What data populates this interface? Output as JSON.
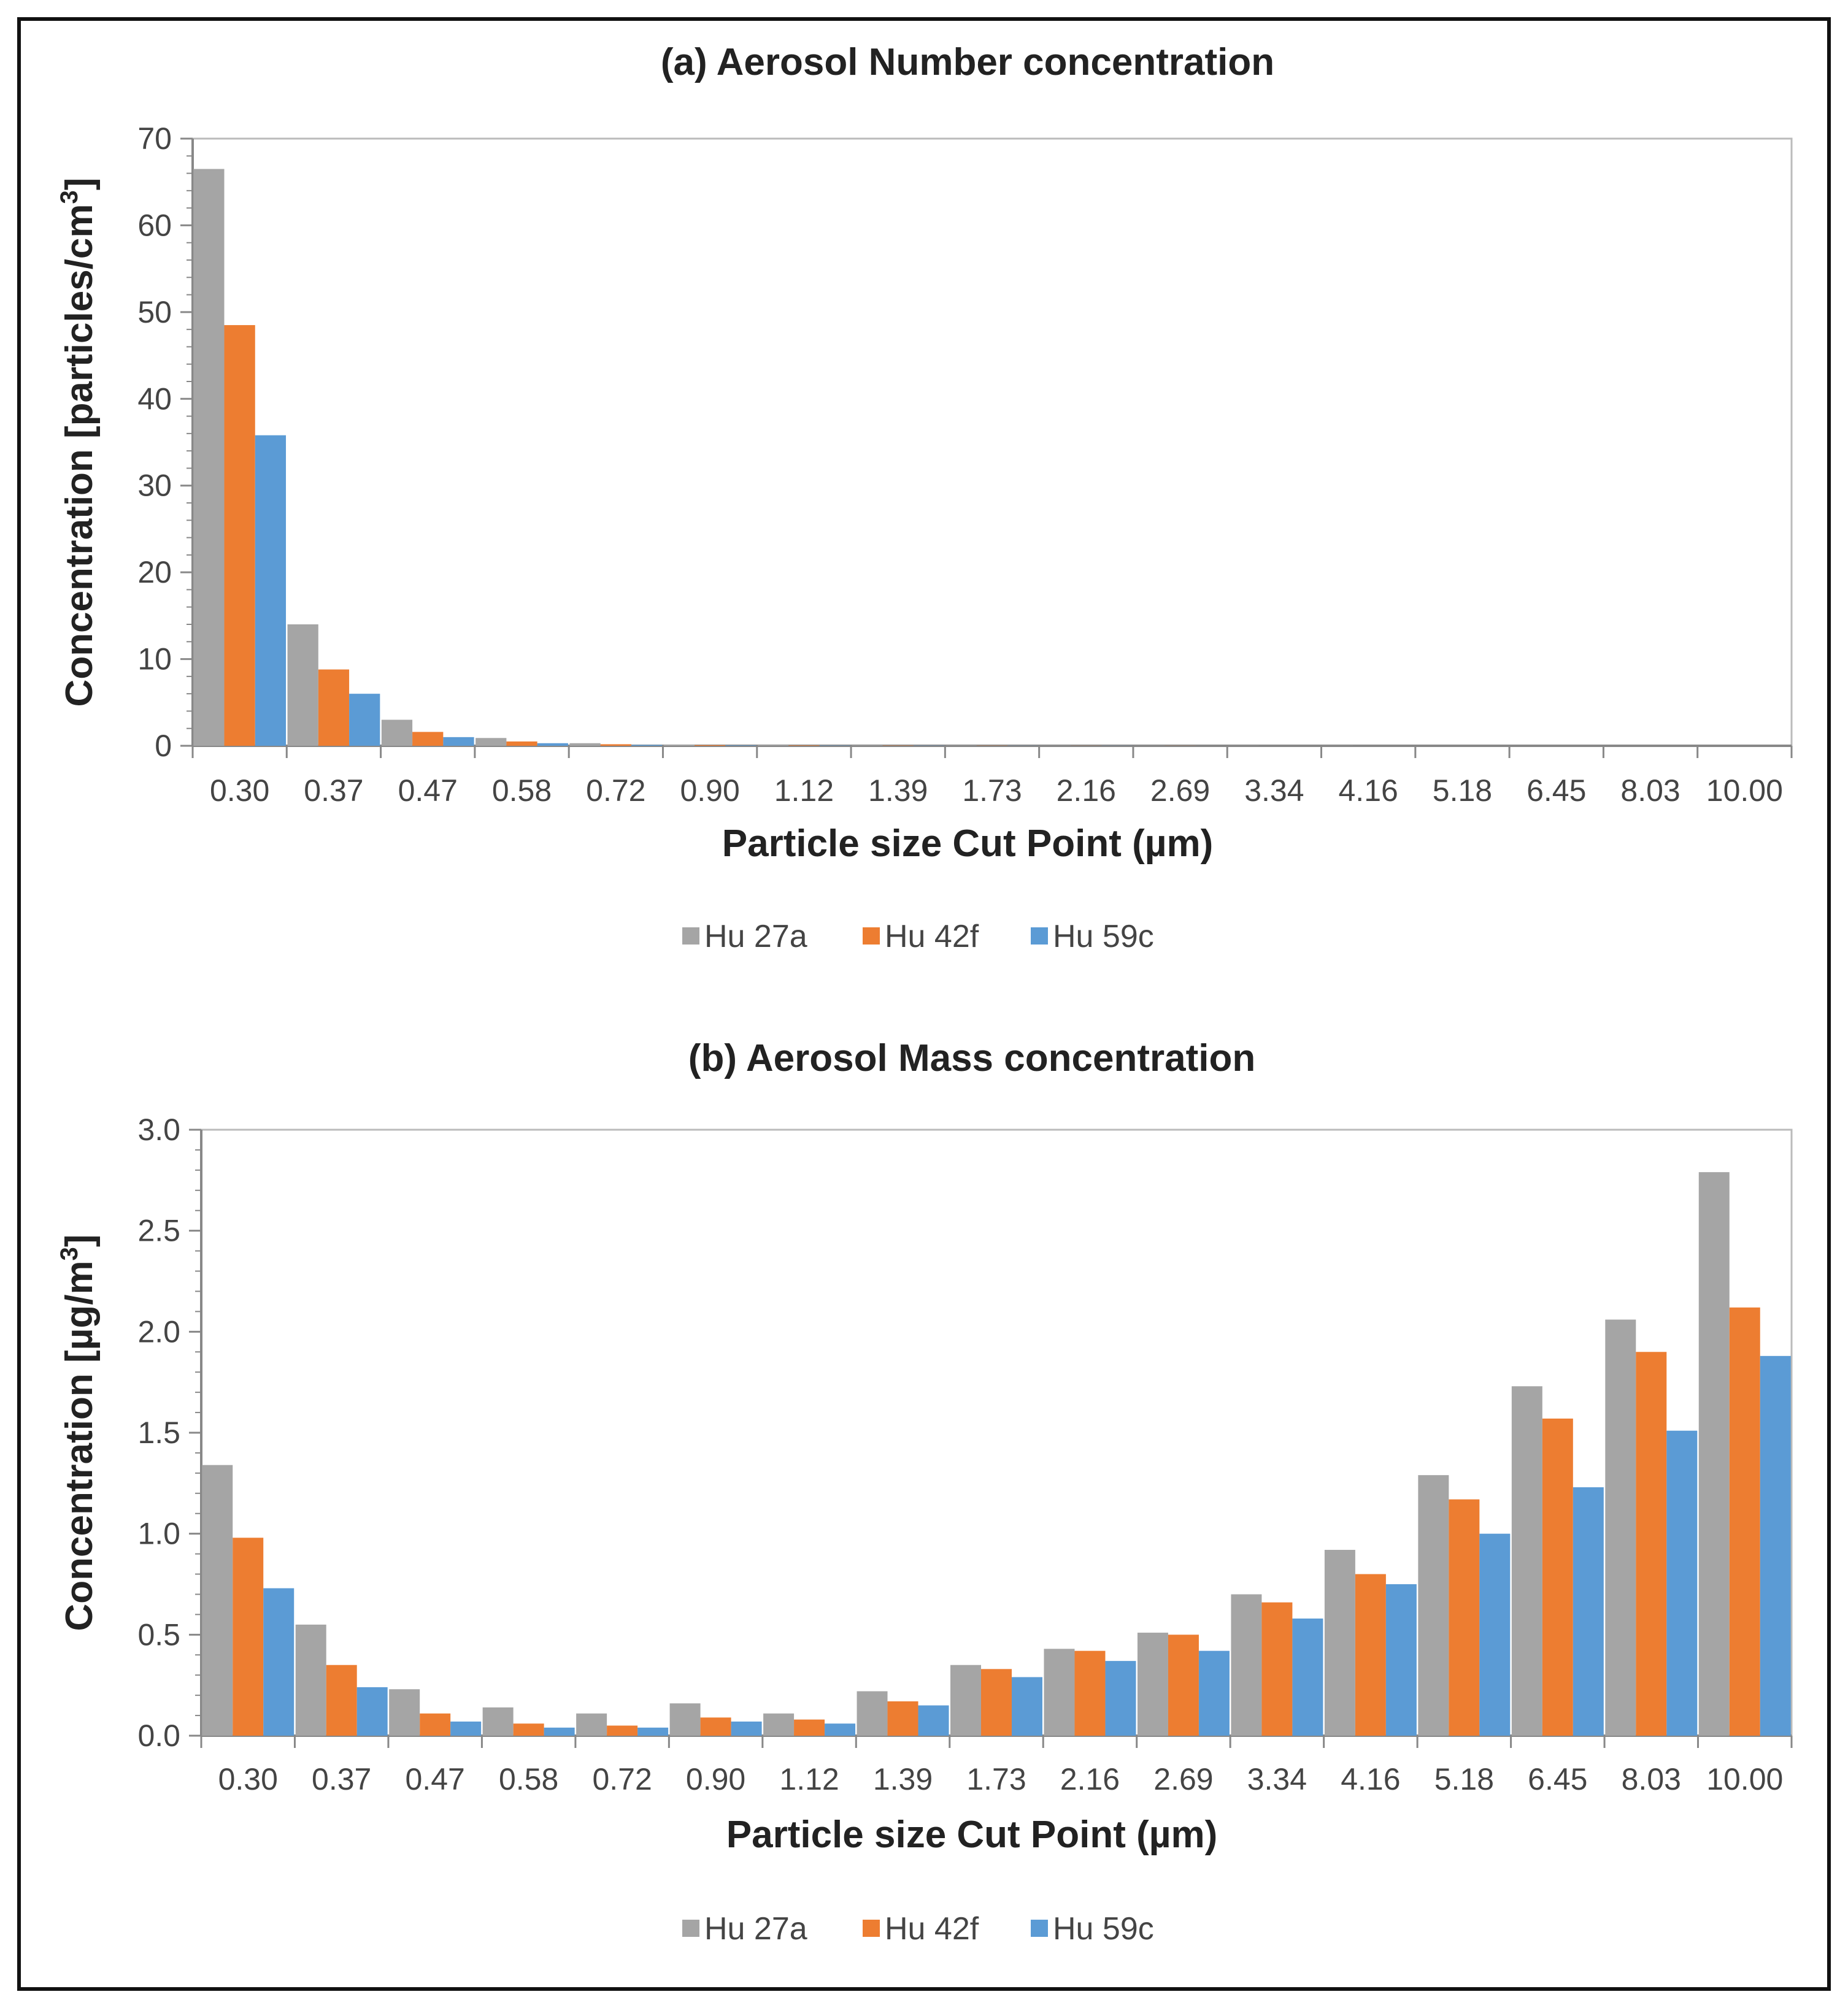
{
  "colors": {
    "series": [
      "#A5A5A5",
      "#ED7D31",
      "#5B9BD5"
    ],
    "axis": "#888888",
    "text": "#222222"
  },
  "chart_data": [
    {
      "type": "bar",
      "title": "(a) Aerosol Number concentration",
      "xlabel": "Particle size Cut Point (µm)",
      "ylabel_main": "Concentration [particles/cm",
      "ylabel_sup": "3",
      "ylabel_end": "]",
      "ylim": [
        0,
        70
      ],
      "yticks": [
        "0",
        "10",
        "20",
        "30",
        "40",
        "50",
        "60",
        "70"
      ],
      "yticks_values": [
        0,
        10,
        20,
        30,
        40,
        50,
        60,
        70
      ],
      "categories": [
        "0.30",
        "0.37",
        "0.47",
        "0.58",
        "0.72",
        "0.90",
        "1.12",
        "1.39",
        "1.73",
        "2.16",
        "2.69",
        "3.34",
        "4.16",
        "5.18",
        "6.45",
        "8.03",
        "10.00"
      ],
      "series": [
        {
          "name": "Hu 27a",
          "values": [
            66.5,
            14.0,
            3.0,
            0.9,
            0.3,
            0.15,
            0.08,
            0.05,
            0.03,
            0.02,
            0.01,
            0.01,
            0.01,
            0,
            0,
            0,
            0
          ]
        },
        {
          "name": "Hu 42f",
          "values": [
            48.5,
            8.8,
            1.6,
            0.5,
            0.18,
            0.08,
            0.05,
            0.03,
            0.02,
            0.01,
            0.01,
            0,
            0,
            0,
            0,
            0,
            0
          ]
        },
        {
          "name": "Hu 59c",
          "values": [
            35.8,
            6.0,
            1.0,
            0.3,
            0.1,
            0.05,
            0.03,
            0.02,
            0.01,
            0.01,
            0,
            0,
            0,
            0,
            0,
            0,
            0
          ]
        }
      ],
      "legend": "bottom"
    },
    {
      "type": "bar",
      "title": "(b) Aerosol Mass concentration",
      "xlabel": "Particle size Cut Point (µm)",
      "ylabel_main": "Concentration [µg/m",
      "ylabel_sup": "3",
      "ylabel_end": "]",
      "ylim": [
        0,
        3.0
      ],
      "yticks": [
        "0.0",
        "0.5",
        "1.0",
        "1.5",
        "2.0",
        "2.5",
        "3.0"
      ],
      "yticks_values": [
        0,
        0.5,
        1.0,
        1.5,
        2.0,
        2.5,
        3.0
      ],
      "categories": [
        "0.30",
        "0.37",
        "0.47",
        "0.58",
        "0.72",
        "0.90",
        "1.12",
        "1.39",
        "1.73",
        "2.16",
        "2.69",
        "3.34",
        "4.16",
        "5.18",
        "6.45",
        "8.03",
        "10.00"
      ],
      "series": [
        {
          "name": "Hu 27a",
          "values": [
            1.34,
            0.55,
            0.23,
            0.14,
            0.11,
            0.16,
            0.11,
            0.22,
            0.35,
            0.43,
            0.51,
            0.7,
            0.92,
            1.29,
            1.73,
            2.06,
            2.79
          ]
        },
        {
          "name": "Hu 42f",
          "values": [
            0.98,
            0.35,
            0.11,
            0.06,
            0.05,
            0.09,
            0.08,
            0.17,
            0.33,
            0.42,
            0.5,
            0.66,
            0.8,
            1.17,
            1.57,
            1.9,
            2.12
          ]
        },
        {
          "name": "Hu 59c",
          "values": [
            0.73,
            0.24,
            0.07,
            0.04,
            0.04,
            0.07,
            0.06,
            0.15,
            0.29,
            0.37,
            0.42,
            0.58,
            0.75,
            1.0,
            1.23,
            1.51,
            1.88
          ]
        }
      ],
      "legend": "bottom"
    }
  ]
}
